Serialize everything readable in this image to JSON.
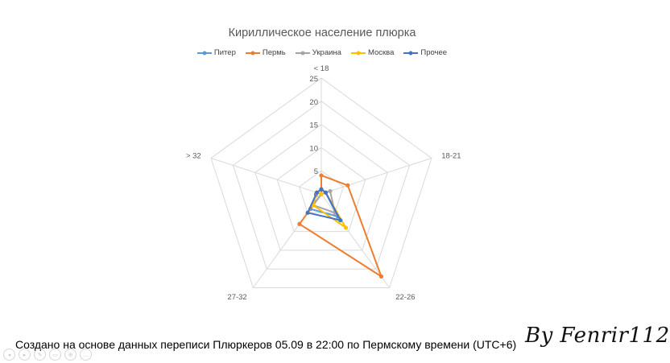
{
  "chart_data": {
    "type": "radar",
    "title": "Кириллическое население плюрка",
    "categories": [
      "< 18",
      "18-21",
      "22-26",
      "27-32",
      "> 32"
    ],
    "rlim": [
      0,
      25
    ],
    "ticks": [
      0,
      5,
      10,
      15,
      20,
      25
    ],
    "tick_labels": [
      "0",
      "5",
      "10",
      "15",
      "20",
      "25"
    ],
    "legend_position": "top",
    "series": [
      {
        "name": "Питер",
        "color": "#5b9bd5",
        "values": [
          1,
          1,
          6,
          4,
          1
        ]
      },
      {
        "name": "Пермь",
        "color": "#ed7d31",
        "values": [
          4,
          6,
          22,
          8,
          0
        ]
      },
      {
        "name": "Украина",
        "color": "#a5a5a5",
        "values": [
          0,
          2,
          5,
          3,
          0
        ]
      },
      {
        "name": "Москва",
        "color": "#ffc000",
        "values": [
          0,
          1,
          9,
          3,
          1
        ]
      },
      {
        "name": "Прочее",
        "color": "#4472c4",
        "values": [
          1,
          1,
          7,
          5,
          1
        ]
      }
    ]
  },
  "footer_note": "Создано на основе данных переписи Плюркеров 05.09 в 22:00 по Пермскому времени (UTC+6)",
  "signature": "By Fenrir112",
  "slide_controls": [
    "◂",
    "▸",
    "✎",
    "▭",
    "⊕",
    "…"
  ]
}
